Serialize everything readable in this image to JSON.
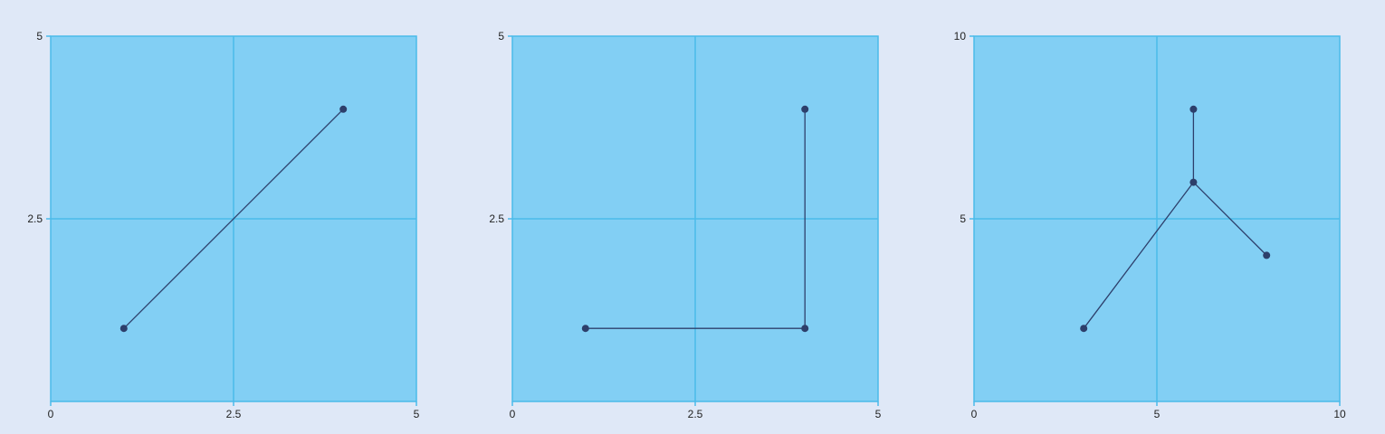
{
  "chart_data": [
    {
      "type": "line",
      "xlim": [
        0,
        5
      ],
      "ylim": [
        0,
        5
      ],
      "xticks": [
        "0",
        "2.5",
        "5"
      ],
      "yticks": [
        "2.5",
        "5"
      ],
      "grid": true,
      "points": [
        [
          1,
          1
        ],
        [
          4,
          4
        ]
      ],
      "segments": [
        [
          0,
          1
        ]
      ]
    },
    {
      "type": "line",
      "xlim": [
        0,
        5
      ],
      "ylim": [
        0,
        5
      ],
      "xticks": [
        "0",
        "2.5",
        "5"
      ],
      "yticks": [
        "2.5",
        "5"
      ],
      "grid": true,
      "points": [
        [
          1,
          1
        ],
        [
          4,
          1
        ],
        [
          4,
          4
        ]
      ],
      "segments": [
        [
          0,
          1
        ],
        [
          1,
          2
        ]
      ]
    },
    {
      "type": "line",
      "xlim": [
        0,
        10
      ],
      "ylim": [
        0,
        10
      ],
      "xticks": [
        "0",
        "5",
        "10"
      ],
      "yticks": [
        "5",
        "10"
      ],
      "grid": true,
      "points": [
        [
          3,
          2
        ],
        [
          6,
          6
        ],
        [
          6,
          8
        ],
        [
          8,
          4
        ]
      ],
      "segments": [
        [
          0,
          1
        ],
        [
          1,
          2
        ],
        [
          1,
          3
        ]
      ]
    }
  ],
  "colors": {
    "background": "#dfe8f7",
    "plot_fill": "#82cff4",
    "grid": "#4bbbea",
    "series": "#2d3f6b",
    "tick_text": "#222222"
  }
}
